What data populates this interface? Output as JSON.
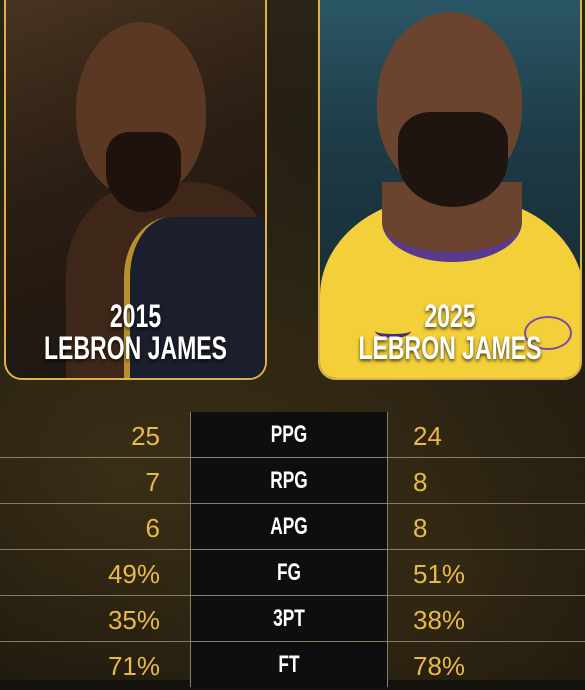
{
  "players": [
    {
      "year": "2015",
      "name": "LEBRON JAMES"
    },
    {
      "year": "2025",
      "name": "LEBRON JAMES"
    }
  ],
  "stats": [
    {
      "label": "PPG",
      "left": "25",
      "right": "24"
    },
    {
      "label": "RPG",
      "left": "7",
      "right": "8"
    },
    {
      "label": "APG",
      "left": "6",
      "right": "8"
    },
    {
      "label": "FG",
      "left": "49%",
      "right": "51%"
    },
    {
      "label": "3PT",
      "left": "35%",
      "right": "38%"
    },
    {
      "label": "FT",
      "left": "71%",
      "right": "78%"
    }
  ],
  "colors": {
    "accent": "#e9b948",
    "border": "#d9b24a",
    "label_bg": "#0e0e0e"
  }
}
